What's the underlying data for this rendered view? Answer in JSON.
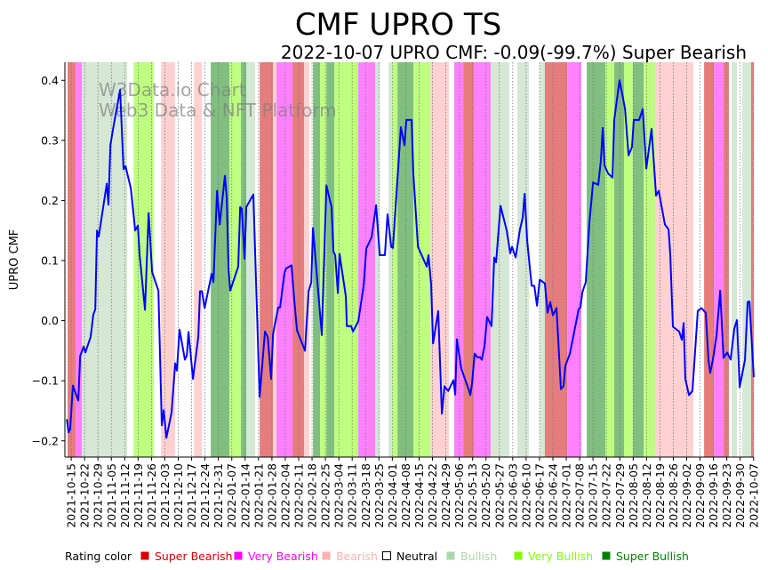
{
  "chart_data": {
    "type": "line",
    "title": "CMF UPRO TS",
    "subtitle": "2022-10-07 UPRO CMF: -0.09(-99.7%) Super Bearish",
    "ylabel": "UPRO CMF",
    "xlabel": "",
    "watermark": [
      "W3Data.io Chart",
      "Web3 Data & NFT Platform"
    ],
    "x_unit": "days since 2021-10-15",
    "xlim": [
      -3.3,
      357.1
    ],
    "ylim": [
      -0.227,
      0.43
    ],
    "yticks": [
      -0.2,
      -0.1,
      0.0,
      0.1,
      0.2,
      0.3,
      0.4
    ],
    "ytick_labels": [
      "−0.2",
      "−0.1",
      "0.0",
      "0.1",
      "0.2",
      "0.3",
      "0.4"
    ],
    "xtick_step_days": 7,
    "xtick_labels": [
      "2021-10-15",
      "2021-10-22",
      "2021-10-29",
      "2021-11-05",
      "2021-11-12",
      "2021-11-19",
      "2021-11-26",
      "2021-12-03",
      "2021-12-10",
      "2021-12-17",
      "2021-12-24",
      "2021-12-31",
      "2022-01-07",
      "2022-01-14",
      "2022-01-21",
      "2022-01-28",
      "2022-02-04",
      "2022-02-11",
      "2022-02-18",
      "2022-02-25",
      "2022-03-04",
      "2022-03-11",
      "2022-03-18",
      "2022-03-25",
      "2022-04-01",
      "2022-04-08",
      "2022-04-15",
      "2022-04-22",
      "2022-04-29",
      "2022-05-06",
      "2022-05-13",
      "2022-05-20",
      "2022-05-27",
      "2022-06-03",
      "2022-06-10",
      "2022-06-17",
      "2022-06-24",
      "2022-07-01",
      "2022-07-08",
      "2022-07-15",
      "2022-07-22",
      "2022-07-29",
      "2022-08-05",
      "2022-08-12",
      "2022-08-19",
      "2022-08-26",
      "2022-09-02",
      "2022-09-09",
      "2022-09-16",
      "2022-09-23",
      "2022-09-30",
      "2022-10-07"
    ],
    "grid": "x dotted weekly",
    "series": [
      {
        "name": "UPRO CMF",
        "color": "#0000ff",
        "points": [
          [
            -2.3,
            -0.164
          ],
          [
            -1.4,
            -0.186
          ],
          [
            -0.5,
            -0.18
          ],
          [
            0.9,
            -0.108
          ],
          [
            3.7,
            -0.133
          ],
          [
            4.7,
            -0.059
          ],
          [
            6.5,
            -0.043
          ],
          [
            7.4,
            -0.053
          ],
          [
            10.2,
            -0.027
          ],
          [
            11.6,
            0.01
          ],
          [
            12.6,
            0.019
          ],
          [
            13.5,
            0.15
          ],
          [
            14.4,
            0.14
          ],
          [
            18.6,
            0.228
          ],
          [
            19.5,
            0.193
          ],
          [
            20.5,
            0.292
          ],
          [
            21.9,
            0.319
          ],
          [
            25.6,
            0.384
          ],
          [
            27.4,
            0.252
          ],
          [
            28.4,
            0.257
          ],
          [
            31.2,
            0.22
          ],
          [
            33.5,
            0.15
          ],
          [
            34.9,
            0.158
          ],
          [
            35.8,
            0.109
          ],
          [
            38.6,
            0.018
          ],
          [
            40.5,
            0.179
          ],
          [
            42.3,
            0.081
          ],
          [
            45.6,
            0.05
          ],
          [
            47.4,
            -0.174
          ],
          [
            48.4,
            -0.149
          ],
          [
            49.8,
            -0.195
          ],
          [
            52.5,
            -0.153
          ],
          [
            54.4,
            -0.071
          ],
          [
            55.3,
            -0.083
          ],
          [
            56.7,
            -0.015
          ],
          [
            59.5,
            -0.065
          ],
          [
            60.5,
            -0.058
          ],
          [
            61.4,
            -0.019
          ],
          [
            63.7,
            -0.097
          ],
          [
            66.5,
            -0.027
          ],
          [
            67.4,
            0.049
          ],
          [
            68.4,
            0.049
          ],
          [
            69.8,
            0.021
          ],
          [
            73.5,
            0.078
          ],
          [
            74.4,
            0.064
          ],
          [
            76.3,
            0.216
          ],
          [
            77.7,
            0.16
          ],
          [
            80.4,
            0.241
          ],
          [
            81.4,
            0.204
          ],
          [
            82.3,
            0.086
          ],
          [
            83.2,
            0.05
          ],
          [
            87.4,
            0.09
          ],
          [
            88.4,
            0.189
          ],
          [
            89.3,
            0.186
          ],
          [
            90.7,
            0.103
          ],
          [
            91.6,
            0.189
          ],
          [
            95.3,
            0.21
          ],
          [
            98.6,
            -0.127
          ],
          [
            101.4,
            -0.018
          ],
          [
            102.8,
            -0.027
          ],
          [
            104.6,
            -0.097
          ],
          [
            105.6,
            -0.022
          ],
          [
            108.3,
            0.022
          ],
          [
            109.3,
            0.022
          ],
          [
            111.6,
            0.08
          ],
          [
            112.5,
            0.087
          ],
          [
            115.3,
            0.092
          ],
          [
            116.7,
            0.035
          ],
          [
            118.1,
            -0.016
          ],
          [
            122.3,
            -0.05
          ],
          [
            124.2,
            0.049
          ],
          [
            125.6,
            0.064
          ],
          [
            126.5,
            0.154
          ],
          [
            131.1,
            -0.024
          ],
          [
            133.5,
            0.225
          ],
          [
            136.2,
            0.189
          ],
          [
            137.2,
            0.115
          ],
          [
            138.1,
            0.109
          ],
          [
            139.5,
            0.046
          ],
          [
            140.4,
            0.111
          ],
          [
            143.7,
            0.04
          ],
          [
            144.2,
            -0.009
          ],
          [
            146.5,
            -0.009
          ],
          [
            147.4,
            -0.018
          ],
          [
            150.2,
            -0.001
          ],
          [
            153.0,
            0.058
          ],
          [
            154.4,
            0.12
          ],
          [
            157.2,
            0.139
          ],
          [
            159.5,
            0.192
          ],
          [
            161.4,
            0.109
          ],
          [
            164.1,
            0.109
          ],
          [
            165.5,
            0.177
          ],
          [
            167.4,
            0.123
          ],
          [
            168.3,
            0.121
          ],
          [
            172.5,
            0.322
          ],
          [
            174.4,
            0.292
          ],
          [
            175.3,
            0.334
          ],
          [
            178.1,
            0.334
          ],
          [
            179.0,
            0.245
          ],
          [
            181.4,
            0.123
          ],
          [
            186.0,
            0.09
          ],
          [
            186.9,
            0.109
          ],
          [
            188.3,
            0.061
          ],
          [
            189.3,
            -0.038
          ],
          [
            192.0,
            0.016
          ],
          [
            193.9,
            -0.155
          ],
          [
            195.3,
            -0.109
          ],
          [
            197.2,
            -0.117
          ],
          [
            200.0,
            -0.099
          ],
          [
            200.9,
            -0.123
          ],
          [
            201.8,
            -0.031
          ],
          [
            204.1,
            -0.08
          ],
          [
            206.5,
            -0.102
          ],
          [
            207.9,
            -0.114
          ],
          [
            208.8,
            -0.124
          ],
          [
            209.7,
            -0.105
          ],
          [
            211.1,
            -0.055
          ],
          [
            212.5,
            -0.061
          ],
          [
            213.9,
            -0.061
          ],
          [
            214.8,
            -0.065
          ],
          [
            216.2,
            -0.043
          ],
          [
            217.6,
            0.006
          ],
          [
            219.9,
            -0.009
          ],
          [
            221.3,
            0.105
          ],
          [
            222.3,
            0.097
          ],
          [
            224.6,
            0.191
          ],
          [
            227.9,
            0.149
          ],
          [
            229.7,
            0.112
          ],
          [
            230.6,
            0.123
          ],
          [
            232.5,
            0.105
          ],
          [
            234.8,
            0.152
          ],
          [
            236.2,
            0.171
          ],
          [
            237.2,
            0.211
          ],
          [
            238.5,
            0.134
          ],
          [
            240.9,
            0.058
          ],
          [
            242.3,
            0.058
          ],
          [
            243.7,
            0.025
          ],
          [
            245.1,
            0.068
          ],
          [
            247.8,
            0.062
          ],
          [
            249.2,
            0.013
          ],
          [
            250.6,
            0.031
          ],
          [
            252.0,
            0.009
          ],
          [
            253.9,
            0.021
          ],
          [
            256.2,
            -0.114
          ],
          [
            257.6,
            -0.109
          ],
          [
            258.5,
            -0.075
          ],
          [
            260.9,
            -0.055
          ],
          [
            265.5,
            0.019
          ],
          [
            266.4,
            0.022
          ],
          [
            267.4,
            0.047
          ],
          [
            269.2,
            0.064
          ],
          [
            271.1,
            0.164
          ],
          [
            273.0,
            0.23
          ],
          [
            275.7,
            0.226
          ],
          [
            277.1,
            0.267
          ],
          [
            278.1,
            0.321
          ],
          [
            279.0,
            0.258
          ],
          [
            280.9,
            0.245
          ],
          [
            283.2,
            0.238
          ],
          [
            284.1,
            0.334
          ],
          [
            286.9,
            0.4
          ],
          [
            289.7,
            0.353
          ],
          [
            291.6,
            0.275
          ],
          [
            293.4,
            0.289
          ],
          [
            294.3,
            0.334
          ],
          [
            295.3,
            0.334
          ],
          [
            297.1,
            0.334
          ],
          [
            299.0,
            0.352
          ],
          [
            300.9,
            0.253
          ],
          [
            303.6,
            0.319
          ],
          [
            306.0,
            0.208
          ],
          [
            307.4,
            0.216
          ],
          [
            310.6,
            0.16
          ],
          [
            312.5,
            0.152
          ],
          [
            313.4,
            0.112
          ],
          [
            314.8,
            -0.01
          ],
          [
            318.1,
            -0.018
          ],
          [
            319.5,
            -0.032
          ],
          [
            320.4,
            -0.004
          ],
          [
            321.3,
            -0.097
          ],
          [
            323.2,
            -0.124
          ],
          [
            325.0,
            -0.117
          ],
          [
            327.8,
            0.016
          ],
          [
            329.7,
            0.021
          ],
          [
            332.0,
            0.013
          ],
          [
            333.4,
            -0.065
          ],
          [
            334.3,
            -0.087
          ],
          [
            335.7,
            -0.065
          ],
          [
            337.6,
            -0.025
          ],
          [
            339.5,
            0.05
          ],
          [
            341.3,
            -0.062
          ],
          [
            343.2,
            -0.053
          ],
          [
            345.0,
            -0.065
          ],
          [
            346.9,
            -0.013
          ],
          [
            348.3,
            0.001
          ],
          [
            349.7,
            -0.111
          ],
          [
            352.5,
            -0.065
          ],
          [
            353.9,
            0.031
          ],
          [
            354.8,
            0.032
          ],
          [
            357.1,
            -0.094
          ]
        ]
      }
    ],
    "rating_bands": [
      [
        -1.9,
        2.3,
        "super_bearish"
      ],
      [
        2.3,
        5.6,
        "very_bearish"
      ],
      [
        5.6,
        29.3,
        "bullish"
      ],
      [
        32.6,
        43.2,
        "very_bullish"
      ],
      [
        47.0,
        54.4,
        "bearish"
      ],
      [
        64.2,
        68.4,
        "bearish"
      ],
      [
        73.0,
        82.8,
        "super_bullish"
      ],
      [
        82.8,
        88.8,
        "very_bullish"
      ],
      [
        88.8,
        91.6,
        "super_bullish"
      ],
      [
        91.6,
        96.3,
        "bullish"
      ],
      [
        98.6,
        105.6,
        "super_bearish"
      ],
      [
        105.6,
        107.4,
        "bearish"
      ],
      [
        107.4,
        115.8,
        "very_bearish"
      ],
      [
        115.8,
        121.8,
        "super_bearish"
      ],
      [
        121.8,
        124.6,
        "bearish"
      ],
      [
        126.5,
        130.2,
        "super_bullish"
      ],
      [
        130.2,
        133.5,
        "very_bullish"
      ],
      [
        133.5,
        137.6,
        "super_bullish"
      ],
      [
        137.6,
        150.2,
        "very_bullish"
      ],
      [
        150.2,
        159.0,
        "very_bearish"
      ],
      [
        159.0,
        161.4,
        "bullish"
      ],
      [
        166.0,
        167.9,
        "bullish"
      ],
      [
        167.9,
        170.7,
        "very_bullish"
      ],
      [
        170.7,
        179.0,
        "super_bullish"
      ],
      [
        179.0,
        187.9,
        "very_bullish"
      ],
      [
        187.9,
        197.6,
        "bearish"
      ],
      [
        200.4,
        205.1,
        "very_bearish"
      ],
      [
        205.1,
        210.6,
        "super_bearish"
      ],
      [
        210.6,
        219.5,
        "very_bearish"
      ],
      [
        219.5,
        229.2,
        "bullish"
      ],
      [
        233.4,
        239.5,
        "bullish"
      ],
      [
        245.1,
        247.8,
        "bullish"
      ],
      [
        247.8,
        259.5,
        "super_bearish"
      ],
      [
        259.5,
        266.9,
        "very_bearish"
      ],
      [
        269.7,
        279.5,
        "super_bullish"
      ],
      [
        279.5,
        284.1,
        "very_bullish"
      ],
      [
        284.1,
        289.2,
        "super_bullish"
      ],
      [
        289.2,
        293.9,
        "very_bullish"
      ],
      [
        293.9,
        299.5,
        "super_bullish"
      ],
      [
        299.5,
        305.5,
        "very_bullish"
      ],
      [
        305.5,
        325.5,
        "bearish"
      ],
      [
        331.1,
        336.2,
        "super_bearish"
      ],
      [
        336.2,
        341.3,
        "very_bearish"
      ],
      [
        341.3,
        344.1,
        "super_bearish"
      ],
      [
        345.5,
        348.3,
        "bullish"
      ],
      [
        351.1,
        355.7,
        "bullish"
      ],
      [
        355.7,
        357.1,
        "super_bearish"
      ]
    ],
    "band_colors": {
      "super_bearish": "#e67d7d",
      "very_bearish": "#ff80ff",
      "bearish": "#ffd1d1",
      "bullish": "#d5e8d5",
      "very_bullish": "#bfff80",
      "super_bullish": "#80bf80"
    },
    "legend": {
      "title": "Rating color",
      "placement": "bottom",
      "items": [
        {
          "label": "Super Bearish",
          "color": "#d40000",
          "text_color": "#d40000"
        },
        {
          "label": "Very Bearish",
          "color": "#ff00ff",
          "text_color": "#ff00ff"
        },
        {
          "label": "Bearish",
          "color": "#ffb0b0",
          "text_color": "#ffb0b0"
        },
        {
          "label": "Neutral",
          "color": "#ffffff",
          "text_color": "#000000"
        },
        {
          "label": "Bullish",
          "color": "#aad6aa",
          "text_color": "#aad6aa"
        },
        {
          "label": "Very Bullish",
          "color": "#7fff00",
          "text_color": "#7fff00"
        },
        {
          "label": "Super Bullish",
          "color": "#008000",
          "text_color": "#008000"
        }
      ]
    }
  }
}
